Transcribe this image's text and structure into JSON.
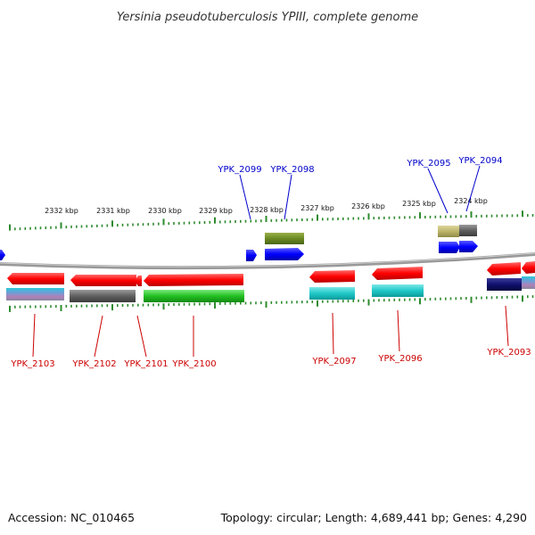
{
  "title": "Yersinia pseudotuberculosis YPIII, complete genome",
  "footer": {
    "accession": "Accession: NC_010465",
    "topology": "Topology: circular; Length: 4,689,441 bp; Genes: 4,290"
  },
  "colors": {
    "forward_label": "#0000cc",
    "reverse_label": "#cc0000",
    "tick": "#2e8b2e",
    "backbone": "#888888"
  },
  "kbp_labels": [
    "2332 kbp",
    "2331 kbp",
    "2330 kbp",
    "2329 kbp",
    "2328 kbp",
    "2327 kbp",
    "2326 kbp",
    "2325 kbp",
    "2324 kbp"
  ],
  "forward_gene_labels": [
    "YPK_2099",
    "YPK_2098",
    "YPK_2095",
    "YPK_2094"
  ],
  "reverse_gene_labels": [
    "YPK_2103",
    "YPK_2102",
    "YPK_2101",
    "YPK_2100",
    "YPK_2097",
    "YPK_2096",
    "YPK_2093"
  ]
}
